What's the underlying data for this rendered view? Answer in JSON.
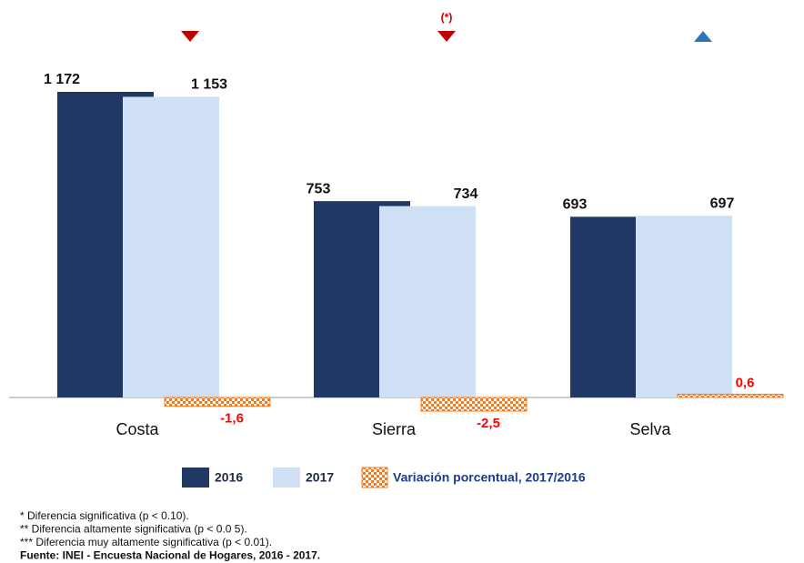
{
  "chart_data": {
    "type": "bar",
    "categories": [
      "Costa",
      "Sierra",
      "Selva"
    ],
    "series": [
      {
        "name": "2016",
        "color": "#1f3864",
        "values": [
          1172,
          753,
          693
        ],
        "value_labels": [
          "1 172",
          "753",
          "693"
        ]
      },
      {
        "name": "2017",
        "color": "#cfe0f5",
        "values": [
          1153,
          734,
          697
        ],
        "value_labels": [
          "1 153",
          "734",
          "697"
        ]
      },
      {
        "name": "Variación porcentual, 2017/2016",
        "color": "#f07c28",
        "pattern": "checker",
        "values": [
          -1.6,
          -2.5,
          0.6
        ],
        "value_labels": [
          "-1,6",
          "-2,5",
          "0,6"
        ]
      }
    ],
    "change_markers": [
      {
        "direction": "down",
        "color": "#c00000",
        "label": null
      },
      {
        "direction": "down",
        "color": "#c00000",
        "label": "(*)"
      },
      {
        "direction": "up",
        "color": "#2e75b6",
        "label": null
      }
    ],
    "footnotes": [
      "* Diferencia significativa (p < 0.10).",
      "** Diferencia altamente significativa (p < 0.0 5).",
      "*** Diferencia muy altamente significativa (p < 0.01).",
      "Fuente: INEI - Encuesta Nacional de Hogares, 2016 - 2017."
    ]
  }
}
